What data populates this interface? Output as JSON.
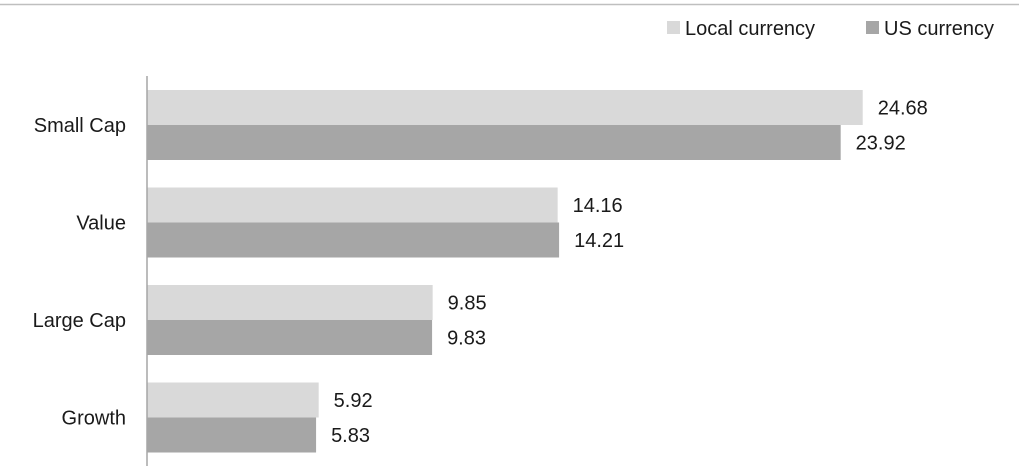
{
  "chart_data": {
    "type": "bar",
    "orientation": "horizontal",
    "title": "",
    "xlabel": "",
    "ylabel": "",
    "categories": [
      "Small Cap",
      "Value",
      "Large Cap",
      "Growth"
    ],
    "series": [
      {
        "name": "Local currency",
        "values": [
          24.68,
          14.16,
          9.85,
          5.92
        ],
        "color": "#d9d9d9"
      },
      {
        "name": "US currency",
        "values": [
          23.92,
          14.21,
          9.83,
          5.83
        ],
        "color": "#a6a6a6"
      }
    ],
    "xlim": [
      0,
      30
    ],
    "grid": false,
    "legend_position": "top-right",
    "top_rule_color": "#bfbfbf",
    "axis_color": "#a6a6a6",
    "label_color": "#1a1a1a"
  }
}
